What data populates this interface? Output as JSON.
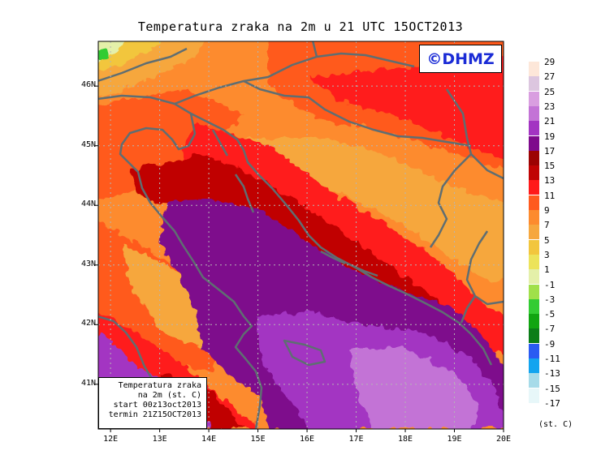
{
  "title": "Temperatura zraka na 2m u 21 UTC 15OCT2013",
  "logo": "©DHMZ",
  "info_box": {
    "line1": "Temperatura zraka",
    "line2": "na 2m (st. C)",
    "line3": "start 00z13oct2013",
    "line4": "termin 21Z15OCT2013"
  },
  "axes": {
    "lat_labels": [
      {
        "text": "46N",
        "lat": 46
      },
      {
        "text": "45N",
        "lat": 45
      },
      {
        "text": "44N",
        "lat": 44
      },
      {
        "text": "43N",
        "lat": 43
      },
      {
        "text": "42N",
        "lat": 42
      },
      {
        "text": "41N",
        "lat": 41
      }
    ],
    "lon_labels": [
      {
        "text": "12E",
        "lon": 12
      },
      {
        "text": "13E",
        "lon": 13
      },
      {
        "text": "14E",
        "lon": 14
      },
      {
        "text": "15E",
        "lon": 15
      },
      {
        "text": "16E",
        "lon": 16
      },
      {
        "text": "17E",
        "lon": 17
      },
      {
        "text": "18E",
        "lon": 18
      },
      {
        "text": "19E",
        "lon": 19
      },
      {
        "text": "20E",
        "lon": 20
      }
    ],
    "lat_range": [
      40.25,
      46.75
    ],
    "lon_range": [
      11.75,
      20.0
    ]
  },
  "legend": {
    "units": "(st. C)",
    "bins": [
      {
        "label": "29",
        "color": "#fde7d9"
      },
      {
        "label": "27",
        "color": "#dcc6df"
      },
      {
        "label": "25",
        "color": "#d99ee0"
      },
      {
        "label": "23",
        "color": "#c373d6"
      },
      {
        "label": "21",
        "color": "#a334c2"
      },
      {
        "label": "19",
        "color": "#7e0a8c"
      },
      {
        "label": "17",
        "color": "#9c0303"
      },
      {
        "label": "15",
        "color": "#c00404"
      },
      {
        "label": "13",
        "color": "#ff1a1a"
      },
      {
        "label": "11",
        "color": "#ff5a1f"
      },
      {
        "label": "9",
        "color": "#fd8b2e"
      },
      {
        "label": "7",
        "color": "#f6a73e"
      },
      {
        "label": "5",
        "color": "#f2c63d"
      },
      {
        "label": "3",
        "color": "#ece35a"
      },
      {
        "label": "1",
        "color": "#e4f0a9"
      },
      {
        "label": "-1",
        "color": "#a0e04a"
      },
      {
        "label": "-3",
        "color": "#33cc33"
      },
      {
        "label": "-5",
        "color": "#11a511"
      },
      {
        "label": "-7",
        "color": "#0b7d18"
      },
      {
        "label": "-9",
        "color": "#2a5bf2"
      },
      {
        "label": "-11",
        "color": "#12a4ef"
      },
      {
        "label": "-13",
        "color": "#a6dbe9"
      },
      {
        "label": "-15",
        "color": "#e7f7f9"
      },
      {
        "label": "-17",
        "color": "#ffffff"
      }
    ]
  },
  "colors": {
    "coast": "#5f6e72",
    "grid": "#b5b5b5",
    "sea_warm": "#7e0a8c",
    "sea_warmer": "#a334c2",
    "sea_warmest": "#c373d6"
  }
}
